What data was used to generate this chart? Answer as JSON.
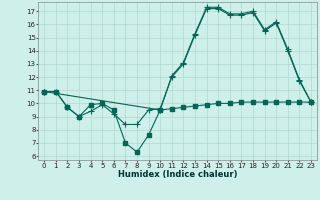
{
  "xlabel": "Humidex (Indice chaleur)",
  "background_color": "#cff0ea",
  "grid_color": "#b0d8d0",
  "line_color": "#006655",
  "xlim": [
    -0.5,
    23.5
  ],
  "ylim": [
    5.7,
    17.7
  ],
  "xticks": [
    0,
    1,
    2,
    3,
    4,
    5,
    6,
    7,
    8,
    9,
    10,
    11,
    12,
    13,
    14,
    15,
    16,
    17,
    18,
    19,
    20,
    21,
    22,
    23
  ],
  "yticks": [
    6,
    7,
    8,
    9,
    10,
    11,
    12,
    13,
    14,
    15,
    16,
    17
  ],
  "line1_x": [
    0,
    1,
    2,
    3,
    4,
    5,
    6,
    7,
    8,
    9,
    10,
    11,
    12,
    13,
    14,
    15,
    16,
    17,
    18,
    19,
    20,
    21,
    22,
    23
  ],
  "line1_y": [
    10.9,
    10.9,
    9.7,
    9.0,
    9.9,
    10.0,
    9.5,
    7.0,
    6.3,
    7.6,
    9.5,
    9.6,
    9.7,
    9.8,
    9.9,
    10.0,
    10.0,
    10.1,
    10.1,
    10.1,
    10.1,
    10.1,
    10.1,
    10.1
  ],
  "line2_x": [
    0,
    1,
    2,
    3,
    4,
    5,
    6,
    7,
    8,
    9,
    10,
    11,
    12,
    13,
    14,
    15,
    16,
    17,
    18,
    19,
    20,
    21,
    22,
    23
  ],
  "line2_y": [
    10.9,
    10.9,
    9.7,
    9.0,
    9.4,
    9.9,
    9.2,
    8.4,
    8.4,
    9.5,
    9.6,
    12.0,
    13.0,
    15.2,
    17.2,
    17.2,
    16.7,
    16.7,
    16.9,
    15.5,
    16.1,
    14.0,
    11.7,
    10.1
  ],
  "line3_x": [
    0,
    10,
    11,
    12,
    13,
    14,
    15,
    16,
    17,
    18,
    19,
    20,
    21,
    22,
    23
  ],
  "line3_y": [
    10.9,
    9.5,
    12.1,
    13.1,
    15.3,
    17.3,
    17.3,
    16.8,
    16.8,
    17.0,
    15.6,
    16.2,
    14.1,
    11.8,
    10.1
  ],
  "line_width": 0.8,
  "marker_size": 2.5,
  "tick_fontsize": 5.0,
  "xlabel_fontsize": 6.0
}
